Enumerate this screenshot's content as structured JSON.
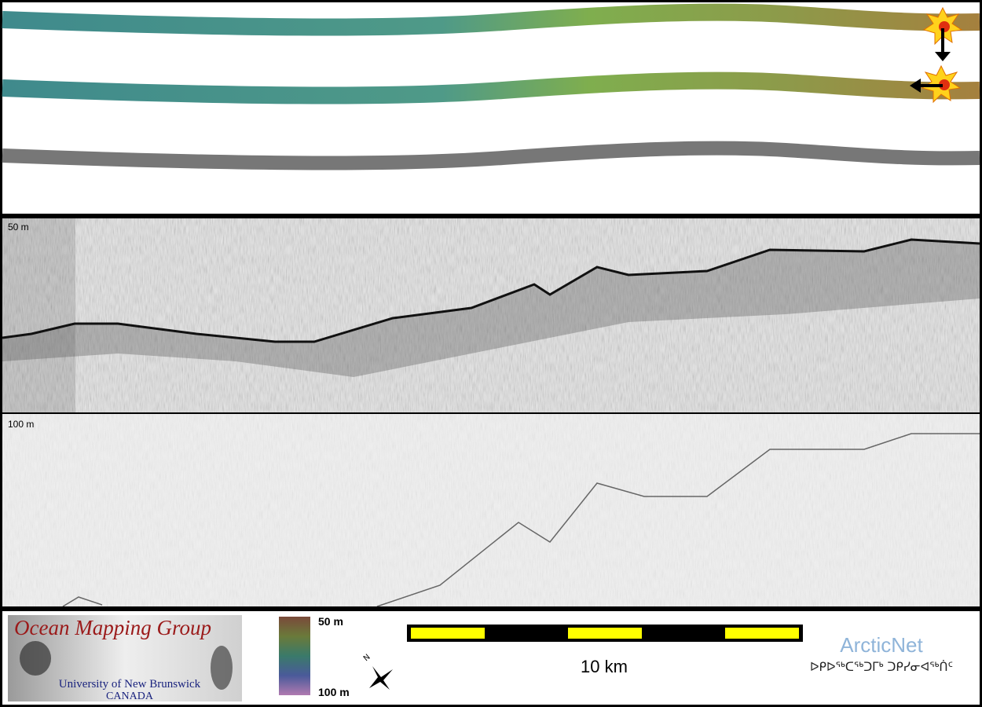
{
  "profile": {
    "upper_label": "50 m",
    "lower_label": "100 m"
  },
  "footer": {
    "logo": {
      "title": "Ocean Mapping Group",
      "university": "University of New Brunswick",
      "country": "CANADA"
    },
    "color_scale": {
      "top": "50 m",
      "bottom": "100 m"
    },
    "scale_bar": {
      "label": "10 km"
    },
    "arcticnet": {
      "name": "ArcticNet",
      "inuktitut": "ᐅᑭᐅᖅᑕᖅᑐᒥᒃ ᑐᑭᓯᓂᐊᖅᑏᑦ"
    }
  }
}
